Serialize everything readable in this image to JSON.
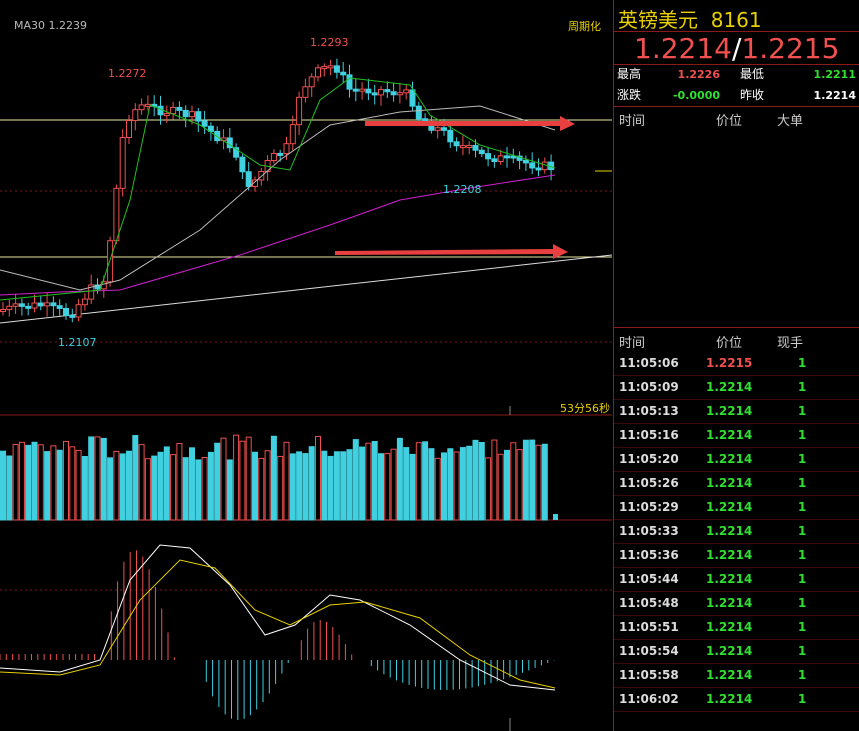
{
  "chart": {
    "ma_label": "MA30 1.2239",
    "period_button": "周期化",
    "countdown": "53分56秒",
    "price_labels": [
      "1.2293",
      "1.2272",
      "1.2208",
      "1.2107"
    ]
  },
  "quote": {
    "name": "英镑美元",
    "code": "8161",
    "bid": "1.2214",
    "separator": "/",
    "ask": "1.2215",
    "stats": [
      [
        "最高",
        "1.2226",
        "最低",
        "1.2211"
      ],
      [
        "涨跌",
        "-0.0000",
        "昨收",
        "1.2214"
      ]
    ]
  },
  "big_orders": {
    "headers": [
      "时间",
      "价位",
      "大单"
    ]
  },
  "trades": {
    "headers": [
      "时间",
      "价位",
      "现手"
    ],
    "rows": [
      [
        "11:05:06",
        "1.2215",
        "1"
      ],
      [
        "11:05:09",
        "1.2214",
        "1"
      ],
      [
        "11:05:13",
        "1.2214",
        "1"
      ],
      [
        "11:05:16",
        "1.2214",
        "1"
      ],
      [
        "11:05:20",
        "1.2214",
        "1"
      ],
      [
        "11:05:26",
        "1.2214",
        "1"
      ],
      [
        "11:05:29",
        "1.2214",
        "1"
      ],
      [
        "11:05:33",
        "1.2214",
        "1"
      ],
      [
        "11:05:36",
        "1.2214",
        "1"
      ],
      [
        "11:05:44",
        "1.2214",
        "1"
      ],
      [
        "11:05:48",
        "1.2214",
        "1"
      ],
      [
        "11:05:51",
        "1.2214",
        "1"
      ],
      [
        "11:05:54",
        "1.2214",
        "1"
      ],
      [
        "11:05:58",
        "1.2214",
        "1"
      ],
      [
        "11:06:02",
        "1.2214",
        "1"
      ]
    ]
  }
}
